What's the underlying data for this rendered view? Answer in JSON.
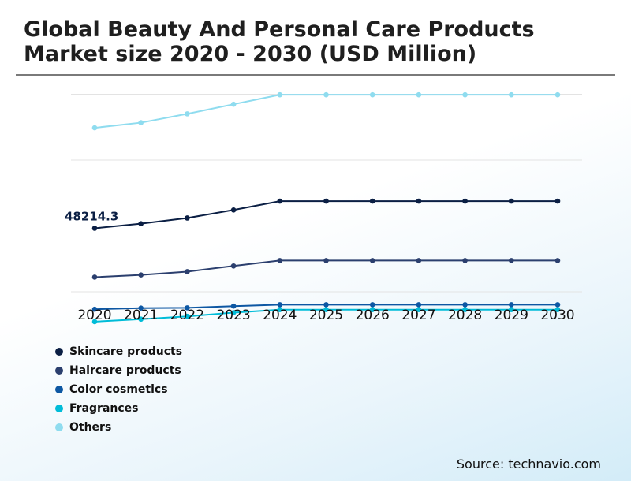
{
  "title": "Global Beauty And Personal Care Products Market size 2020 - 2030 (USD Million)",
  "source": "Source: technavio.com",
  "chart_data": {
    "type": "line",
    "title": "Global Beauty And Personal Care Products Market size 2020 - 2030 (USD Million)",
    "xlabel": "",
    "ylabel": "",
    "x": [
      "2020",
      "2021",
      "2022",
      "2023",
      "2024",
      "2025",
      "2026",
      "2027",
      "2028",
      "2029",
      "2030"
    ],
    "ylim": [
      0,
      154000
    ],
    "grid": true,
    "legend_position": "bottom-left",
    "series": [
      {
        "name": "Skincare products",
        "color": "#0b1f44",
        "values": [
          48214.3,
          51700,
          56000,
          62100,
          68800,
          68800,
          68800,
          68800,
          68800,
          68800,
          68800
        ]
      },
      {
        "name": "Haircare products",
        "color": "#2b3f6e",
        "values": [
          11100,
          12800,
          15300,
          19600,
          23700,
          23700,
          23700,
          23700,
          23700,
          23700,
          23700
        ]
      },
      {
        "name": "Color cosmetics",
        "color": "#0d57a3",
        "values": [
          -13300,
          -12400,
          -12200,
          -10900,
          -9800,
          -9800,
          -9800,
          -9800,
          -9800,
          -9800,
          -9800
        ]
      },
      {
        "name": "Fragrances",
        "color": "#00bcd8",
        "values": [
          -22700,
          -20800,
          -18700,
          -15900,
          -13600,
          -13600,
          -13600,
          -13600,
          -13600,
          -13600,
          -13600
        ]
      },
      {
        "name": "Others",
        "color": "#8fdcef",
        "values": [
          124500,
          128400,
          135100,
          142400,
          149600,
          149600,
          149600,
          149600,
          149600,
          149600,
          149600
        ]
      }
    ],
    "annotations": [
      {
        "series": "Skincare products",
        "x": "2020",
        "label": "48214.3"
      }
    ],
    "gridline_values": [
      0,
      50000,
      100000,
      150000
    ]
  }
}
